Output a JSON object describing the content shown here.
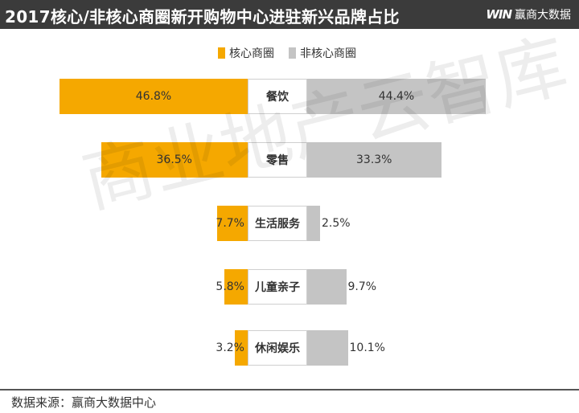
{
  "header": {
    "title": "2017核心/非核心商圈新开购物中心进驻新兴品牌占比",
    "brand_logo": "WIN",
    "brand_name": "赢商大数据"
  },
  "watermark": "商业地产云智库",
  "footer": {
    "source": "数据来源：赢商大数据中心"
  },
  "colors": {
    "core": "#f5a800",
    "noncore": "#c4c4c4"
  },
  "chart_data": {
    "type": "bar",
    "title": "2017核心/非核心商圈新开购物中心进驻新兴品牌占比",
    "categories": [
      "餐饮",
      "零售",
      "生活服务",
      "儿童亲子",
      "休闲娱乐"
    ],
    "series": [
      {
        "name": "核心商圈",
        "values": [
          46.8,
          36.5,
          7.7,
          5.8,
          3.2
        ],
        "labels": [
          "46.8%",
          "36.5%",
          "7.7%",
          "5.8%",
          "3.2%"
        ]
      },
      {
        "name": "非核心商圈",
        "values": [
          44.4,
          33.3,
          2.5,
          9.7,
          10.1
        ],
        "labels": [
          "44.4%",
          "33.3%",
          "2.5%",
          "9.7%",
          "10.1%"
        ]
      }
    ],
    "legend": "top-center",
    "grid": false
  }
}
